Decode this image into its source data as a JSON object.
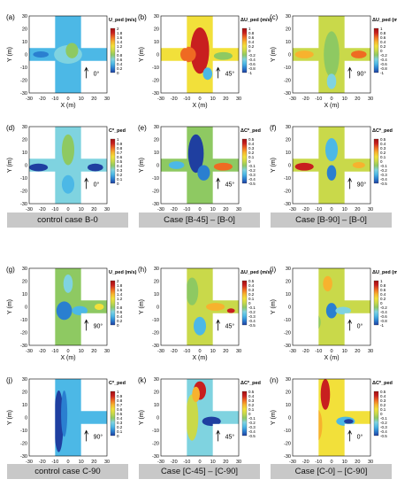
{
  "figure": {
    "axes": {
      "xlabel": "X (m)",
      "ylabel": "Y (m)",
      "ticks": [
        "-30",
        "-20",
        "-10",
        "0",
        "10",
        "20",
        "30"
      ]
    },
    "captions": [
      "control case B-0",
      "Case [B-45] – [B-0]",
      "Case [B-90] – [B-0]",
      "control case C-90",
      "Case [C-45] – [C-90]",
      "Case [C-0] – [C-90]"
    ],
    "colors": {
      "u_scale": [
        "#1f3fa0",
        "#2a7fd0",
        "#4cb8e6",
        "#7fd3e0",
        "#8ec962",
        "#c9d94a",
        "#f2e03a",
        "#f7b22e",
        "#ef6a22",
        "#c81f1f",
        "#a00f0f"
      ],
      "diff_scale": [
        "#1f3fa0",
        "#2a7fd0",
        "#4cb8e6",
        "#7fd3e0",
        "#8ec962",
        "#c9d94a",
        "#f2e03a",
        "#f7b22e",
        "#ef6a22",
        "#c81f1f",
        "#a00f0f"
      ]
    }
  },
  "chart_data": [
    {
      "panel": "(a)",
      "type": "heatmap",
      "title": "",
      "xlabel": "X (m)",
      "ylabel": "Y (m)",
      "xlim": [
        -30,
        30
      ],
      "ylim": [
        -30,
        30
      ],
      "wind_direction": "0°",
      "colorbar_label": "U_ped (m/s)",
      "colorbar_ticks": [
        "2",
        "1.8",
        "1.6",
        "1.4",
        "1.2",
        "1",
        "0.8",
        "0.6",
        "0.4",
        "0.2",
        "0"
      ]
    },
    {
      "panel": "(b)",
      "type": "heatmap",
      "title": "",
      "xlabel": "X (m)",
      "ylabel": "Y (m)",
      "xlim": [
        -30,
        30
      ],
      "ylim": [
        -30,
        30
      ],
      "wind_direction": "45°",
      "colorbar_label": "ΔU_ped (m/s)",
      "colorbar_ticks": [
        "1",
        "0.8",
        "0.6",
        "0.4",
        "0.2",
        "0",
        "-0.2",
        "-0.4",
        "-0.6",
        "-0.8",
        "-1"
      ]
    },
    {
      "panel": "(c)",
      "type": "heatmap",
      "title": "",
      "xlabel": "X (m)",
      "ylabel": "Y (m)",
      "xlim": [
        -30,
        30
      ],
      "ylim": [
        -30,
        30
      ],
      "wind_direction": "90°",
      "colorbar_label": "ΔU_ped (m/s)",
      "colorbar_ticks": [
        "1",
        "0.8",
        "0.6",
        "0.4",
        "0.2",
        "0",
        "-0.2",
        "-0.4",
        "-0.6",
        "-0.8",
        "-1"
      ]
    },
    {
      "panel": "(d)",
      "type": "heatmap",
      "title": "",
      "xlabel": "X (m)",
      "ylabel": "Y (m)",
      "xlim": [
        -30,
        30
      ],
      "ylim": [
        -30,
        30
      ],
      "wind_direction": "0°",
      "colorbar_label": "C*_ped",
      "colorbar_ticks": [
        "1",
        "0.9",
        "0.8",
        "0.7",
        "0.6",
        "0.5",
        "0.4",
        "0.3",
        "0.2",
        "0.1",
        "0"
      ]
    },
    {
      "panel": "(e)",
      "type": "heatmap",
      "title": "",
      "xlabel": "X (m)",
      "ylabel": "Y (m)",
      "xlim": [
        -30,
        30
      ],
      "ylim": [
        -30,
        30
      ],
      "wind_direction": "45°",
      "colorbar_label": "ΔC*_ped",
      "colorbar_ticks": [
        "0.5",
        "0.4",
        "0.3",
        "0.2",
        "0.1",
        "0",
        "-0.1",
        "-0.2",
        "-0.3",
        "-0.4",
        "-0.5"
      ]
    },
    {
      "panel": "(f)",
      "type": "heatmap",
      "title": "",
      "xlabel": "X (m)",
      "ylabel": "Y (m)",
      "xlim": [
        -30,
        30
      ],
      "ylim": [
        -30,
        30
      ],
      "wind_direction": "90°",
      "colorbar_label": "ΔC*_ped",
      "colorbar_ticks": [
        "0.5",
        "0.4",
        "0.3",
        "0.2",
        "0.1",
        "0",
        "-0.1",
        "-0.2",
        "-0.3",
        "-0.4",
        "-0.5"
      ]
    },
    {
      "panel": "(g)",
      "type": "heatmap",
      "title": "",
      "xlabel": "X (m)",
      "ylabel": "Y (m)",
      "xlim": [
        -30,
        30
      ],
      "ylim": [
        -30,
        30
      ],
      "wind_direction": "90°",
      "colorbar_label": "U_ped (m/s)",
      "colorbar_ticks": [
        "2",
        "1.8",
        "1.6",
        "1.4",
        "1.2",
        "1",
        "0.8",
        "0.6",
        "0.4",
        "0.2",
        "0"
      ]
    },
    {
      "panel": "(h)",
      "type": "heatmap",
      "title": "",
      "xlabel": "X (m)",
      "ylabel": "Y (m)",
      "xlim": [
        -30,
        30
      ],
      "ylim": [
        -30,
        30
      ],
      "wind_direction": "45°",
      "colorbar_label": "ΔU_ped (m/s)",
      "colorbar_ticks": [
        "0.5",
        "0.4",
        "0.3",
        "0.2",
        "0.1",
        "0",
        "-0.1",
        "-0.2",
        "-0.3",
        "-0.4",
        "-0.5"
      ]
    },
    {
      "panel": "(i)",
      "type": "heatmap",
      "title": "",
      "xlabel": "X (m)",
      "ylabel": "Y (m)",
      "xlim": [
        -30,
        30
      ],
      "ylim": [
        -30,
        30
      ],
      "wind_direction": "0°",
      "colorbar_label": "ΔU_ped (m/s)",
      "colorbar_ticks": [
        "1",
        "0.8",
        "0.6",
        "0.4",
        "0.2",
        "0",
        "-0.2",
        "-0.4",
        "-0.6",
        "-0.8",
        "-1"
      ]
    },
    {
      "panel": "(j)",
      "type": "heatmap",
      "title": "",
      "xlabel": "X (m)",
      "ylabel": "Y (m)",
      "xlim": [
        -30,
        30
      ],
      "ylim": [
        -30,
        30
      ],
      "wind_direction": "90°",
      "colorbar_label": "C*_ped",
      "colorbar_ticks": [
        "1",
        "0.9",
        "0.8",
        "0.7",
        "0.6",
        "0.5",
        "0.4",
        "0.3",
        "0.2",
        "0.1",
        "0"
      ]
    },
    {
      "panel": "(k)",
      "type": "heatmap",
      "title": "",
      "xlabel": "X (m)",
      "ylabel": "Y (m)",
      "xlim": [
        -30,
        30
      ],
      "ylim": [
        -30,
        30
      ],
      "wind_direction": "45°",
      "colorbar_label": "ΔC*_ped",
      "colorbar_ticks": [
        "0.5",
        "0.4",
        "0.3",
        "0.2",
        "0.1",
        "0",
        "-0.1",
        "-0.2",
        "-0.3",
        "-0.4",
        "-0.5"
      ]
    },
    {
      "panel": "(n)",
      "type": "heatmap",
      "title": "",
      "xlabel": "X (m)",
      "ylabel": "Y (m)",
      "xlim": [
        -30,
        30
      ],
      "ylim": [
        -30,
        30
      ],
      "wind_direction": "0°",
      "colorbar_label": "ΔC*_ped",
      "colorbar_ticks": [
        "0.5",
        "0.4",
        "0.3",
        "0.2",
        "0.1",
        "0",
        "-0.1",
        "-0.2",
        "-0.3",
        "-0.4",
        "-0.5"
      ]
    }
  ]
}
